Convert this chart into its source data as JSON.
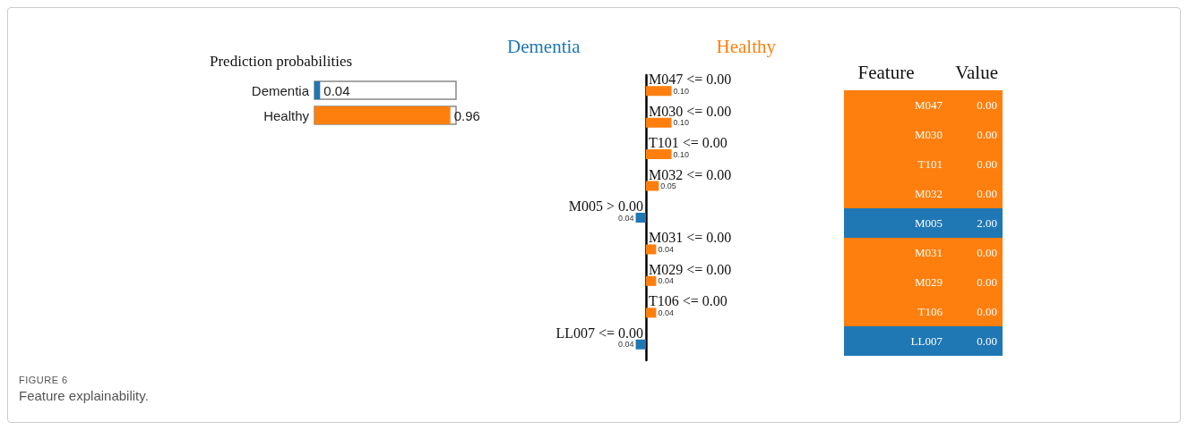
{
  "chart_data": [
    {
      "type": "bar",
      "orientation": "horizontal",
      "title": "Prediction probabilities",
      "categories": [
        "Dementia",
        "Healthy"
      ],
      "values": [
        0.04,
        0.96
      ],
      "colors": [
        "#1f77b4",
        "#ff7f0e"
      ],
      "xlim": [
        0,
        1
      ],
      "data_labels": true,
      "tick_labels": "y",
      "annotations": [
        "FIGURE 6",
        "Feature explainability."
      ]
    },
    {
      "type": "bar",
      "orientation": "horizontal",
      "categories": [
        "M047 <= 0.00",
        "M030 <= 0.00",
        "T101 <= 0.00",
        "M032 <= 0.00",
        "M005 > 0.00",
        "M031 <= 0.00",
        "M029 <= 0.00",
        "T106 <= 0.00",
        "LL007 <= 0.00"
      ],
      "series": [
        {
          "name": "Dementia",
          "color": "#1f77b4",
          "values": [
            null,
            null,
            null,
            null,
            -0.04,
            null,
            null,
            null,
            -0.04
          ]
        },
        {
          "name": "Healthy",
          "color": "#ff7f0e",
          "values": [
            0.1,
            0.1,
            0.1,
            0.05,
            null,
            0.04,
            0.04,
            0.04,
            null
          ],
          "value_labels": [
            "0.10",
            "0.10",
            "0.10",
            "0.05",
            null,
            "0.04",
            "0.04",
            "0.04",
            null
          ]
        }
      ],
      "annotations": [
        {
          "text": "0.04",
          "x": -0.04,
          "y": "M005 > 0.00"
        },
        {
          "text": "0.04",
          "x": -0.04,
          "y": "LL007 <= 0.00"
        }
      ]
    },
    {
      "type": "other",
      "categories": [
        "Feature",
        "Value"
      ],
      "cell_labels": [
        [
          "M047",
          "0.00"
        ],
        [
          "M030",
          "0.00"
        ],
        [
          "T101",
          "0.00"
        ],
        [
          "M032",
          "0.00"
        ],
        [
          "M005",
          "2.00"
        ],
        [
          "M031",
          "0.00"
        ],
        [
          "M029",
          "0.00"
        ],
        [
          "T106",
          "0.00"
        ],
        [
          "LL007",
          "0.00"
        ]
      ],
      "colors": [
        "#ff7f0e",
        "#ff7f0e",
        "#ff7f0e",
        "#ff7f0e",
        "#1f77b4",
        "#ff7f0e",
        "#ff7f0e",
        "#ff7f0e",
        "#1f77b4"
      ]
    }
  ]
}
